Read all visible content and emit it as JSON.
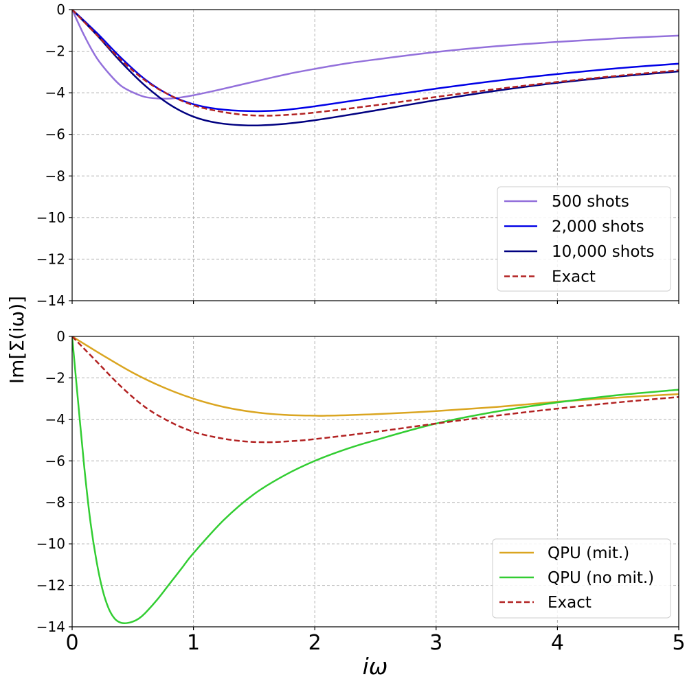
{
  "chart_data": [
    {
      "type": "line",
      "panel": "top",
      "title": "",
      "xlabel": "",
      "ylabel": "Im[Σ(iω)]",
      "xlim": [
        0,
        5
      ],
      "ylim": [
        -14,
        0
      ],
      "x_ticks": [
        0,
        1,
        2,
        3,
        4,
        5
      ],
      "y_ticks": [
        0,
        -2,
        -4,
        -6,
        -8,
        -10,
        -12,
        -14
      ],
      "y_tick_labels": [
        "0",
        "−2",
        "−4",
        "−6",
        "−8",
        "−10",
        "−12",
        "−14"
      ],
      "grid": true,
      "legend_position": "lower-right",
      "series": [
        {
          "name": "500 shots",
          "color": "#9370DB",
          "style": "solid",
          "x": [
            0,
            0.1,
            0.2,
            0.3,
            0.4,
            0.5,
            0.6,
            0.7,
            0.8,
            0.9,
            1.0,
            1.2,
            1.4,
            1.6,
            1.8,
            2.0,
            2.25,
            2.5,
            3.0,
            3.5,
            4.0,
            4.5,
            5.0
          ],
          "values": [
            0,
            -1.25,
            -2.3,
            -3.05,
            -3.65,
            -3.98,
            -4.2,
            -4.27,
            -4.28,
            -4.22,
            -4.12,
            -3.87,
            -3.6,
            -3.33,
            -3.07,
            -2.85,
            -2.6,
            -2.4,
            -2.04,
            -1.76,
            -1.55,
            -1.38,
            -1.25
          ]
        },
        {
          "name": "2,000 shots",
          "color": "#0000E6",
          "style": "solid",
          "x": [
            0,
            0.2,
            0.4,
            0.6,
            0.8,
            1.0,
            1.2,
            1.45,
            1.7,
            2.0,
            2.5,
            3.0,
            3.5,
            4.0,
            4.5,
            5.0
          ],
          "values": [
            0,
            -1.1,
            -2.3,
            -3.35,
            -4.1,
            -4.55,
            -4.78,
            -4.88,
            -4.85,
            -4.65,
            -4.22,
            -3.8,
            -3.42,
            -3.1,
            -2.82,
            -2.6
          ]
        },
        {
          "name": "10,000 shots",
          "color": "#000080",
          "style": "solid",
          "x": [
            0,
            0.2,
            0.4,
            0.6,
            0.8,
            1.0,
            1.2,
            1.45,
            1.7,
            2.0,
            2.5,
            3.0,
            3.5,
            4.0,
            4.5,
            5.0
          ],
          "values": [
            0,
            -1.2,
            -2.5,
            -3.65,
            -4.55,
            -5.15,
            -5.45,
            -5.57,
            -5.52,
            -5.32,
            -4.85,
            -4.35,
            -3.9,
            -3.52,
            -3.22,
            -2.97
          ]
        },
        {
          "name": "Exact",
          "color": "#B22222",
          "style": "dashed",
          "x": [
            0,
            0.2,
            0.4,
            0.6,
            0.8,
            1.0,
            1.2,
            1.4,
            1.6,
            1.8,
            2.0,
            2.5,
            3.0,
            3.5,
            4.0,
            4.5,
            5.0
          ],
          "values": [
            0,
            -1.2,
            -2.4,
            -3.4,
            -4.1,
            -4.6,
            -4.88,
            -5.05,
            -5.1,
            -5.05,
            -4.95,
            -4.6,
            -4.2,
            -3.82,
            -3.48,
            -3.18,
            -2.92
          ]
        }
      ]
    },
    {
      "type": "line",
      "panel": "bottom",
      "title": "",
      "xlabel": "iω",
      "ylabel": "Im[Σ(iω)]",
      "xlim": [
        0,
        5
      ],
      "ylim": [
        -14,
        0
      ],
      "x_ticks": [
        0,
        1,
        2,
        3,
        4,
        5
      ],
      "x_tick_labels": [
        "0",
        "1",
        "2",
        "3",
        "4",
        "5"
      ],
      "y_ticks": [
        0,
        -2,
        -4,
        -6,
        -8,
        -10,
        -12,
        -14
      ],
      "y_tick_labels": [
        "0",
        "−2",
        "−4",
        "−6",
        "−8",
        "−10",
        "−12",
        "−14"
      ],
      "grid": true,
      "legend_position": "lower-right",
      "series": [
        {
          "name": "QPU (mit.)",
          "color": "#DAA520",
          "style": "solid",
          "x": [
            0,
            0.25,
            0.5,
            0.75,
            1.0,
            1.25,
            1.5,
            1.75,
            2.0,
            2.1,
            2.5,
            3.0,
            3.5,
            4.0,
            4.5,
            5.0
          ],
          "values": [
            0,
            -0.9,
            -1.75,
            -2.45,
            -3.0,
            -3.4,
            -3.65,
            -3.78,
            -3.82,
            -3.82,
            -3.75,
            -3.6,
            -3.4,
            -3.15,
            -2.95,
            -2.78
          ]
        },
        {
          "name": "QPU (no mit.)",
          "color": "#32CD32",
          "style": "solid",
          "x": [
            0,
            0.05,
            0.1,
            0.15,
            0.2,
            0.25,
            0.3,
            0.35,
            0.4,
            0.45,
            0.5,
            0.55,
            0.6,
            0.7,
            0.8,
            0.9,
            1.0,
            1.25,
            1.5,
            1.75,
            2.0,
            2.25,
            2.5,
            3.0,
            3.5,
            4.0,
            4.5,
            5.0
          ],
          "values": [
            0,
            -3.2,
            -6.3,
            -8.9,
            -10.8,
            -12.2,
            -13.1,
            -13.6,
            -13.8,
            -13.82,
            -13.75,
            -13.6,
            -13.35,
            -12.7,
            -11.95,
            -11.2,
            -10.45,
            -8.85,
            -7.6,
            -6.7,
            -6.0,
            -5.45,
            -5.0,
            -4.2,
            -3.62,
            -3.18,
            -2.83,
            -2.57
          ]
        },
        {
          "name": "Exact",
          "color": "#B22222",
          "style": "dashed",
          "x": [
            0,
            0.2,
            0.4,
            0.6,
            0.8,
            1.0,
            1.2,
            1.4,
            1.6,
            1.8,
            2.0,
            2.5,
            3.0,
            3.5,
            4.0,
            4.5,
            5.0
          ],
          "values": [
            0,
            -1.2,
            -2.4,
            -3.4,
            -4.1,
            -4.6,
            -4.88,
            -5.05,
            -5.1,
            -5.05,
            -4.95,
            -4.6,
            -4.2,
            -3.82,
            -3.48,
            -3.18,
            -2.92
          ]
        }
      ]
    }
  ]
}
